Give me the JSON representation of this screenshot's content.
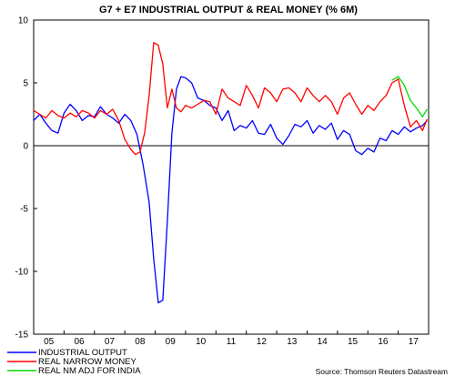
{
  "chart_data": {
    "type": "line",
    "title": "G7 + E7 INDUSTRIAL OUTPUT & REAL MONEY (% 6M)",
    "source": "Source: Thomson Reuters Datastream",
    "ylim": [
      -15,
      10
    ],
    "y_ticks": [
      10,
      5,
      0,
      -5,
      -10,
      -15
    ],
    "y_tick_labels": [
      "10",
      "5",
      "0",
      "-5",
      "-10",
      "-15"
    ],
    "xlim": [
      2004.5,
      2017.5
    ],
    "x_ticks": [
      2005,
      2006,
      2007,
      2008,
      2009,
      2010,
      2011,
      2012,
      2013,
      2014,
      2015,
      2016,
      2017
    ],
    "x_tick_labels": [
      "05",
      "06",
      "07",
      "08",
      "09",
      "10",
      "11",
      "12",
      "13",
      "14",
      "15",
      "16",
      "17"
    ],
    "zero_line": true,
    "legend_position": "bottom-left",
    "series": [
      {
        "name": "INDUSTRIAL OUTPUT",
        "color": "#0000ff",
        "x": [
          2004.5,
          2004.7,
          2004.9,
          2005.1,
          2005.3,
          2005.5,
          2005.7,
          2005.9,
          2006.1,
          2006.3,
          2006.5,
          2006.7,
          2006.9,
          2007.1,
          2007.3,
          2007.5,
          2007.7,
          2007.9,
          2008.1,
          2008.3,
          2008.45,
          2008.6,
          2008.75,
          2008.9,
          2009.05,
          2009.2,
          2009.35,
          2009.5,
          2009.7,
          2009.9,
          2010.1,
          2010.3,
          2010.5,
          2010.7,
          2010.9,
          2011.1,
          2011.3,
          2011.5,
          2011.7,
          2011.9,
          2012.1,
          2012.3,
          2012.5,
          2012.7,
          2012.9,
          2013.1,
          2013.3,
          2013.5,
          2013.7,
          2013.9,
          2014.1,
          2014.3,
          2014.5,
          2014.7,
          2014.9,
          2015.1,
          2015.3,
          2015.5,
          2015.7,
          2015.9,
          2016.1,
          2016.3,
          2016.5,
          2016.7,
          2016.9,
          2017.1,
          2017.3,
          2017.45
        ],
        "y": [
          2.0,
          2.5,
          1.8,
          1.2,
          1.0,
          2.6,
          3.3,
          2.8,
          2.0,
          2.4,
          2.3,
          3.1,
          2.5,
          2.2,
          1.8,
          2.5,
          2.0,
          0.9,
          -1.5,
          -4.5,
          -9.0,
          -12.5,
          -12.3,
          -6.0,
          1.0,
          4.5,
          5.5,
          5.4,
          5.0,
          3.8,
          3.6,
          3.2,
          3.0,
          2.0,
          2.8,
          1.2,
          1.6,
          1.4,
          2.0,
          1.0,
          0.9,
          1.7,
          0.6,
          0.1,
          0.8,
          1.7,
          1.5,
          2.0,
          1.0,
          1.6,
          1.3,
          1.8,
          0.5,
          1.2,
          0.9,
          -0.4,
          -0.7,
          -0.2,
          -0.5,
          0.6,
          0.4,
          1.2,
          0.9,
          1.5,
          1.1,
          1.4,
          1.6,
          2.0
        ]
      },
      {
        "name": "REAL NARROW MONEY",
        "color": "#ff0000",
        "x": [
          2004.5,
          2004.7,
          2004.9,
          2005.1,
          2005.3,
          2005.5,
          2005.7,
          2005.9,
          2006.1,
          2006.3,
          2006.5,
          2006.7,
          2006.9,
          2007.1,
          2007.3,
          2007.5,
          2007.7,
          2007.85,
          2008.0,
          2008.15,
          2008.3,
          2008.45,
          2008.6,
          2008.75,
          2008.9,
          2009.05,
          2009.2,
          2009.35,
          2009.5,
          2009.7,
          2009.9,
          2010.1,
          2010.3,
          2010.5,
          2010.7,
          2010.9,
          2011.1,
          2011.3,
          2011.5,
          2011.7,
          2011.9,
          2012.1,
          2012.3,
          2012.5,
          2012.7,
          2012.9,
          2013.1,
          2013.3,
          2013.5,
          2013.7,
          2013.9,
          2014.1,
          2014.3,
          2014.5,
          2014.7,
          2014.9,
          2015.1,
          2015.3,
          2015.5,
          2015.7,
          2015.9,
          2016.1,
          2016.3,
          2016.5,
          2016.7,
          2016.9,
          2017.1,
          2017.3,
          2017.45
        ],
        "y": [
          2.8,
          2.5,
          2.2,
          2.8,
          2.4,
          2.2,
          2.6,
          2.3,
          2.8,
          2.6,
          2.2,
          2.8,
          2.5,
          2.9,
          2.0,
          0.5,
          -0.3,
          -0.7,
          -0.5,
          1.0,
          4.0,
          8.2,
          8.0,
          6.5,
          3.0,
          4.5,
          3.0,
          2.7,
          3.2,
          3.0,
          3.3,
          3.6,
          3.5,
          2.5,
          4.5,
          3.8,
          3.5,
          3.2,
          4.8,
          4.0,
          3.0,
          4.6,
          4.2,
          3.5,
          4.5,
          4.6,
          4.2,
          3.5,
          4.6,
          4.0,
          3.5,
          4.0,
          3.5,
          2.5,
          3.8,
          4.2,
          3.3,
          2.5,
          3.2,
          2.8,
          3.5,
          4.0,
          5.0,
          5.3,
          3.2,
          1.5,
          2.0,
          1.2,
          2.1
        ]
      },
      {
        "name": "REAL NM ADJ FOR INDIA",
        "color": "#00dd00",
        "x": [
          2016.3,
          2016.5,
          2016.7,
          2016.9,
          2017.1,
          2017.3,
          2017.45
        ],
        "y": [
          5.2,
          5.5,
          4.8,
          3.6,
          3.0,
          2.3,
          2.9
        ]
      }
    ]
  }
}
